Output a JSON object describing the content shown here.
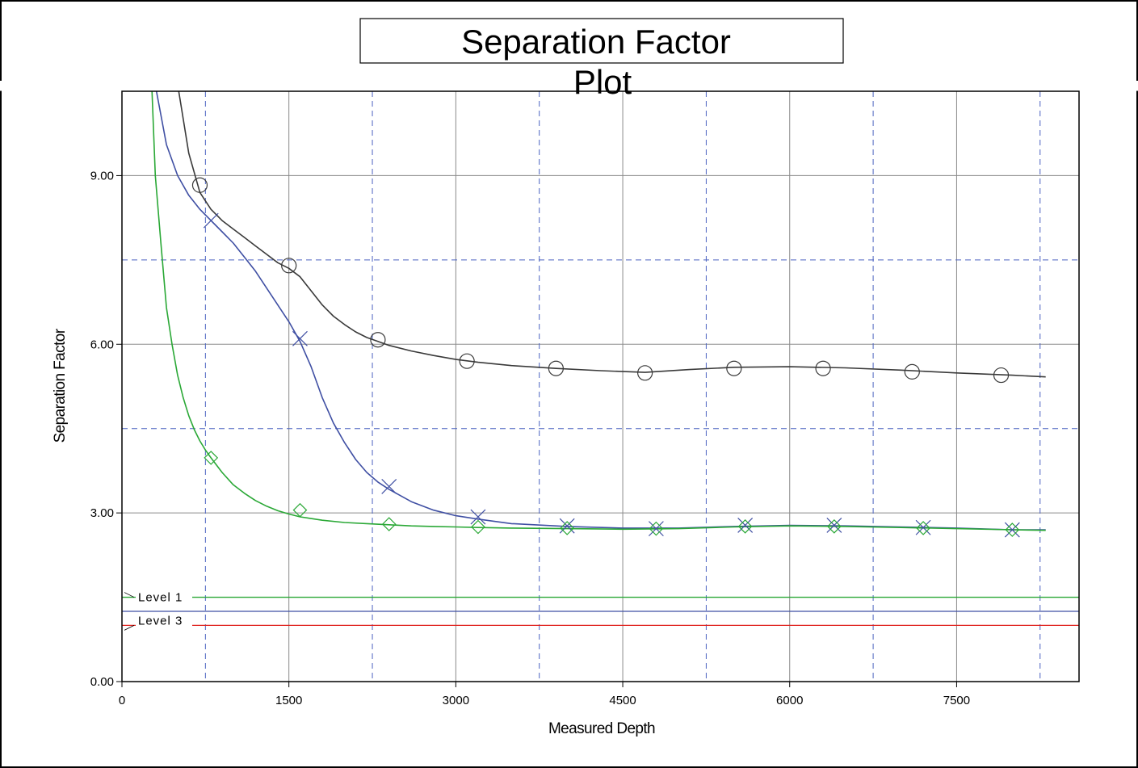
{
  "chart_data": {
    "type": "line",
    "title_line1": "Separation Factor",
    "title_line2": "Plot",
    "xlabel": "Measured Depth",
    "ylabel": "Separation  Factor",
    "xlim": [
      0,
      8600
    ],
    "ylim": [
      0,
      10.5
    ],
    "x_ticks": [
      {
        "value": 0,
        "label": "0"
      },
      {
        "value": 1500,
        "label": "1500"
      },
      {
        "value": 3000,
        "label": "3000"
      },
      {
        "value": 4500,
        "label": "4500"
      },
      {
        "value": 6000,
        "label": "6000"
      },
      {
        "value": 7500,
        "label": "7500"
      }
    ],
    "y_ticks": [
      {
        "value": 0,
        "label": "0.00"
      },
      {
        "value": 3,
        "label": "3.00"
      },
      {
        "value": 6,
        "label": "6.00"
      },
      {
        "value": 9,
        "label": "9.00"
      }
    ],
    "x_dashed_grid": [
      750,
      2250,
      3750,
      5250,
      6750,
      8250
    ],
    "y_dashed_grid": [
      4.5,
      7.5
    ],
    "grid": true,
    "series": [
      {
        "color": "#3a3a3a",
        "marker": "circle",
        "x": [
          510,
          600,
          700,
          800,
          900,
          1000,
          1100,
          1200,
          1300,
          1400,
          1500,
          1600,
          1700,
          1800,
          1900,
          2000,
          2100,
          2200,
          2300,
          2400,
          2600,
          2800,
          3000,
          3200,
          3500,
          3900,
          4300,
          4700,
          5100,
          5500,
          6000,
          6500,
          7000,
          7500,
          8000,
          8300
        ],
        "y": [
          10.5,
          9.4,
          8.7,
          8.4,
          8.2,
          8.05,
          7.9,
          7.75,
          7.6,
          7.45,
          7.35,
          7.2,
          6.95,
          6.7,
          6.5,
          6.35,
          6.22,
          6.12,
          6.05,
          5.98,
          5.88,
          5.8,
          5.73,
          5.68,
          5.62,
          5.57,
          5.53,
          5.5,
          5.55,
          5.59,
          5.6,
          5.58,
          5.54,
          5.49,
          5.45,
          5.42
        ],
        "markers_x": [
          700,
          1500,
          2300,
          3100,
          3900,
          4700,
          5500,
          6300,
          7100,
          7900
        ],
        "markers_y": [
          8.83,
          7.4,
          6.08,
          5.7,
          5.57,
          5.49,
          5.57,
          5.57,
          5.51,
          5.45
        ]
      },
      {
        "color": "#3f4fa3",
        "marker": "x",
        "x": [
          310,
          400,
          500,
          600,
          700,
          800,
          900,
          1000,
          1100,
          1200,
          1300,
          1400,
          1500,
          1600,
          1700,
          1800,
          1900,
          2000,
          2100,
          2200,
          2300,
          2400,
          2600,
          2800,
          3000,
          3200,
          3500,
          4000,
          4500,
          5000,
          5500,
          6000,
          6500,
          7000,
          7500,
          8000,
          8300
        ],
        "y": [
          10.5,
          9.55,
          9.0,
          8.65,
          8.4,
          8.2,
          8.0,
          7.8,
          7.55,
          7.3,
          7.0,
          6.7,
          6.4,
          6.05,
          5.6,
          5.05,
          4.6,
          4.25,
          3.95,
          3.72,
          3.55,
          3.42,
          3.2,
          3.05,
          2.95,
          2.89,
          2.81,
          2.76,
          2.73,
          2.73,
          2.76,
          2.78,
          2.77,
          2.75,
          2.73,
          2.7,
          2.7
        ],
        "markers_x": [
          800,
          1600,
          2400,
          3200,
          4000,
          4800,
          5600,
          6400,
          7200,
          8000
        ],
        "markers_y": [
          8.2,
          6.1,
          3.47,
          2.93,
          2.77,
          2.72,
          2.78,
          2.78,
          2.74,
          2.7
        ]
      },
      {
        "color": "#2aa836",
        "marker": "diamond",
        "x": [
          270,
          300,
          350,
          400,
          450,
          500,
          550,
          600,
          650,
          700,
          750,
          800,
          900,
          1000,
          1100,
          1200,
          1300,
          1400,
          1500,
          1600,
          1800,
          2000,
          2200,
          2400,
          2600,
          2800,
          3000,
          3200,
          3500,
          4000,
          4500,
          5000,
          5500,
          6000,
          6500,
          7000,
          7500,
          8000,
          8300
        ],
        "y": [
          10.5,
          9.0,
          7.8,
          6.65,
          6.0,
          5.45,
          5.05,
          4.73,
          4.48,
          4.28,
          4.12,
          3.98,
          3.72,
          3.5,
          3.35,
          3.22,
          3.12,
          3.04,
          2.98,
          2.93,
          2.87,
          2.83,
          2.81,
          2.79,
          2.77,
          2.76,
          2.75,
          2.74,
          2.73,
          2.72,
          2.71,
          2.72,
          2.75,
          2.77,
          2.76,
          2.74,
          2.72,
          2.7,
          2.69
        ],
        "markers_x": [
          800,
          1600,
          2400,
          3200,
          4000,
          4800,
          5600,
          6400,
          7200,
          8000
        ],
        "markers_y": [
          3.98,
          3.05,
          2.8,
          2.75,
          2.73,
          2.72,
          2.76,
          2.76,
          2.73,
          2.7
        ]
      }
    ],
    "levels": [
      {
        "label": "Level  1",
        "value": 1.5,
        "color": "#2aa836"
      },
      {
        "label": "",
        "value": 1.25,
        "color": "#3f4fa3"
      },
      {
        "label": "Level  3",
        "value": 1.0,
        "color": "#e0201c"
      }
    ]
  }
}
